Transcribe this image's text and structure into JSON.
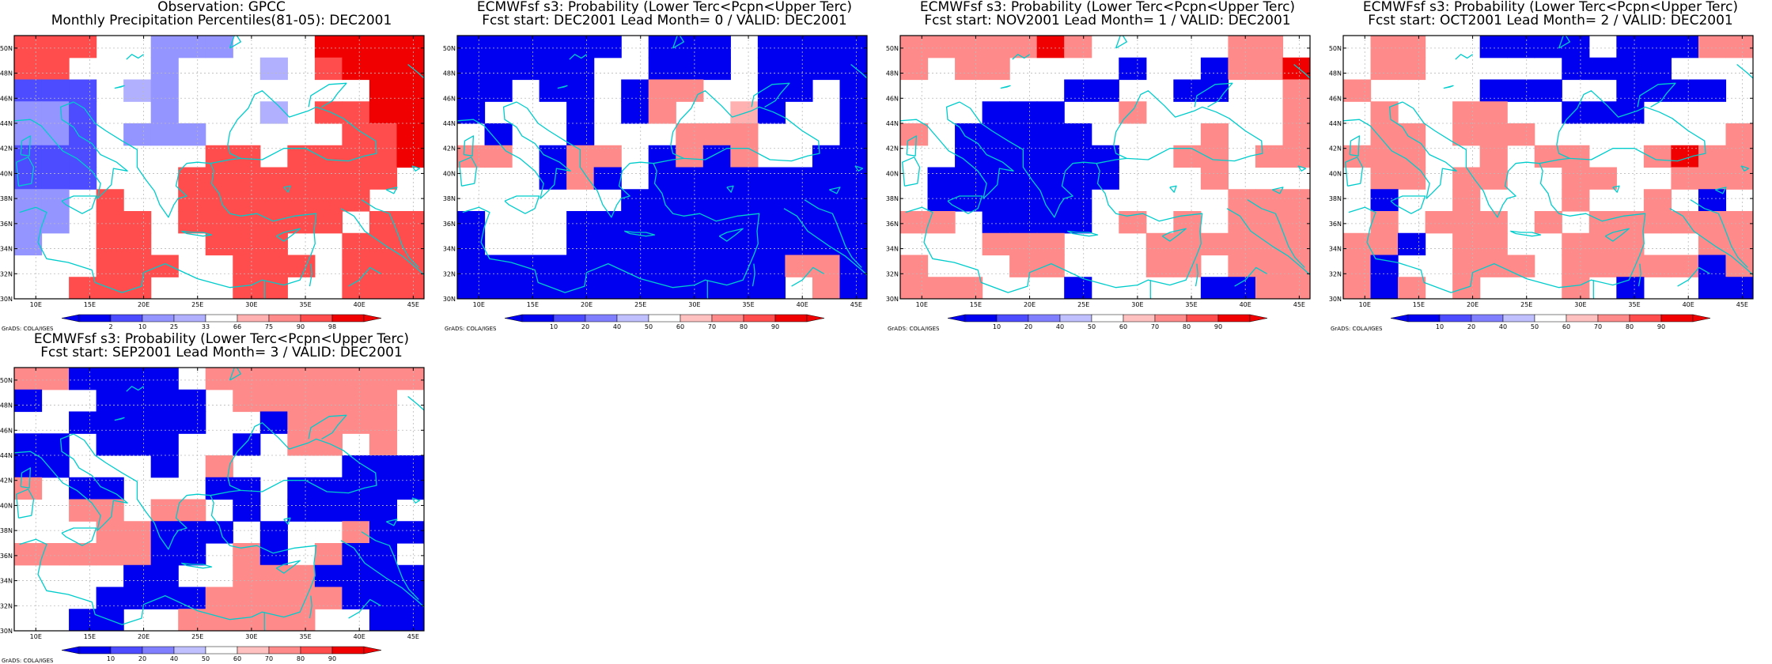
{
  "colors": {
    "dblue": "#0000f0",
    "blue": "#4d4dff",
    "lblue": "#9595ff",
    "vlblue": "#b0b0ff",
    "white": "#ffffff",
    "vlred": "#ffb0b0",
    "lred": "#ff8a8a",
    "red": "#ff4d4d",
    "dred": "#f00000",
    "coast": "#00cccc",
    "grid": "#bbbbbb"
  },
  "map": {
    "lon_labels": [
      "10E",
      "15E",
      "20E",
      "25E",
      "30E",
      "35E",
      "40E",
      "45E"
    ],
    "lat_labels": [
      "30N",
      "32N",
      "34N",
      "36N",
      "38N",
      "40N",
      "42N",
      "44N",
      "46N",
      "48N",
      "50N"
    ]
  },
  "credit": "GrADS: COLA/IGES",
  "panels": [
    {
      "id": "obs",
      "title1": "Observation: GPCC",
      "title2": "Monthly Precipitation Percentiles(81-05): DEC2001",
      "cb_labels": [
        "2",
        "10",
        "25",
        "33",
        "66",
        "75",
        "90",
        "98"
      ],
      "grid": [
        "RRR..bbb...DDDD",
        "RR...b...l.RDDD",
        "BBB.lb.......DD",
        "bbB..L...l.RRDD",
        "bbB.LLL.....RRD",
        "BBB....RR.RRRRD",
        "BBB...RRRRRRRR.",
        "bL.R..RRRRRRR..",
        "bL.RR.RRRRRR.RR",
        "b..RR..RRR..RRR",
        "...RRR..RRR.RRR",
        "..RRR...RR..RRR"
      ]
    },
    {
      "id": "lead0",
      "title1": "ECMWFsf s3: Probability (Lower Terc<Pcpn<Upper Terc)",
      "title2": "Fcst start: DEC2001   Lead Month= 0 / VALID: DEC2001",
      "cb_labels": [
        "10",
        "20",
        "40",
        "50",
        "60",
        "70",
        "80",
        "90"
      ],
      "grid": [
        "BBBBBB.BBB.BBBB",
        "BBBBB..BBB.BBBB",
        "BB.BB.BRR..BB.B",
        "B...B.BR..rB..B",
        ".B..B...RRR...B",
        "RR.BRR.BRBR..BB",
        "...BRB.BBBBBBBB",
        "......BBBBBBBBB",
        "B...BBBBBBBBBBB",
        "B...BBBBBBBBBBB",
        "BBBBBBBBBBBBRRB",
        "BBBBBBBBBBBB.RB"
      ]
    },
    {
      "id": "lead1",
      "title1": "ECMWFsf s3: Probability (Lower Terc<Pcpn<Upper Terc)",
      "title2": "Fcst start: NOV2001   Lead Month= 1 / VALID: DEC2001",
      "cb_labels": [
        "10",
        "20",
        "40",
        "50",
        "60",
        "70",
        "80",
        "90"
      ],
      "grid": [
        "RRRRRDR.....RR.",
        "R.RR....B..BRRD",
        "......BB..BB..R",
        "...BBB..R.....R",
        "R.BBBBB....R..R",
        "..BBBBBB..RR.RR",
        ".BBBBBBB...R...",
        ".BBBBBB.....RRR",
        "RR.BBBB.R.R.RRR",
        "...RRR...RRRRRR",
        "R...RR...RR.RRR",
        "RRR...B....BBRR"
      ]
    },
    {
      "id": "lead2",
      "title1": "ECMWFsf s3: Probability (Lower Terc<Pcpn<Upper Terc)",
      "title2": "Fcst start: OCT2001   Lead Month= 2 / VALID: DEC2001",
      "cb_labels": [
        "10",
        "20",
        "40",
        "50",
        "60",
        "70",
        "80",
        "90"
      ],
      "grid": [
        ".RR..BBBB.BBBRR",
        ".RR.....BBBB...",
        "R....BBB..BBBB.",
        ".R..RR..BBB....",
        ".RR.RRR.......R",
        "RRR..R.RR..RDRR",
        ".RR.RR..RR..RRR",
        ".B..R...R..R.B.",
        ".R.RRR.R.RRRRRR",
        "RRB.RR..RRR..RR",
        "RB..RRR.RRRRRBR",
        "RBR.R...R.B..BB"
      ]
    },
    {
      "id": "lead3",
      "title1": "ECMWFsf s3: Probability (Lower Terc<Pcpn<Upper Terc)",
      "title2": "Fcst start: SEP2001   Lead Month= 3 / VALID: DEC2001",
      "cb_labels": [
        "10",
        "20",
        "40",
        "50",
        "60",
        "70",
        "80",
        "90"
      ],
      "grid": [
        "RRBBBB.RRRRRRRR",
        "B..BBBB.RRRRRR.",
        "..BBBBB..BRRRR.",
        "BB.BBB..B.RR.R.",
        "BB...B.R....BBB",
        "R.BB...BB.BBBBB",
        "..RR.RR.B.BBBB.",
        "...RRBBB.B..RBB",
        "RRRRRBB.RB.RBB.",
        "....BB..RRRBBBB",
        "...BBBBRRRRRBBB",
        "..BB..RRRRR..BB"
      ]
    }
  ]
}
